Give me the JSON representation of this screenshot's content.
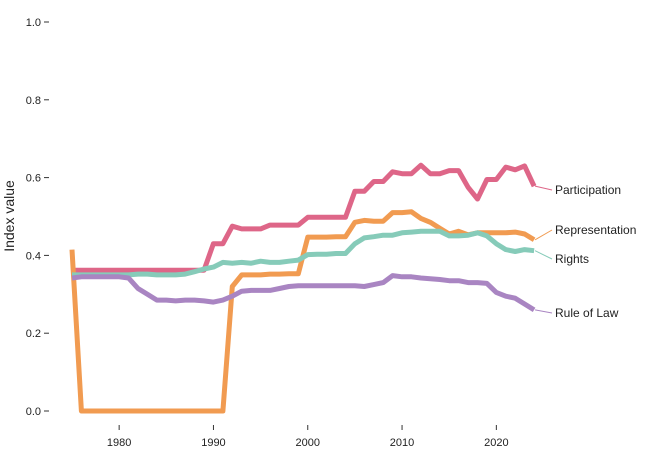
{
  "chart_data": {
    "type": "line",
    "title": "",
    "xlabel": "",
    "ylabel": "Index value",
    "xlim": [
      1975,
      2024
    ],
    "ylim": [
      0,
      1.0
    ],
    "x_ticks": [
      "1980",
      "1990",
      "2000",
      "2010",
      "2020"
    ],
    "y_ticks": [
      "0.0",
      "0.2",
      "0.4",
      "0.6",
      "0.8",
      "1.0"
    ],
    "grid": false,
    "legend": "direct labels at line ends",
    "x": [
      1975,
      1976,
      1977,
      1978,
      1979,
      1980,
      1981,
      1982,
      1983,
      1984,
      1985,
      1986,
      1987,
      1988,
      1989,
      1990,
      1991,
      1992,
      1993,
      1994,
      1995,
      1996,
      1997,
      1998,
      1999,
      2000,
      2001,
      2002,
      2003,
      2004,
      2005,
      2006,
      2007,
      2008,
      2009,
      2010,
      2011,
      2012,
      2013,
      2014,
      2015,
      2016,
      2017,
      2018,
      2019,
      2020,
      2021,
      2022,
      2023,
      2024
    ],
    "series": [
      {
        "name": "Participation",
        "color": "#de6688",
        "values": [
          0.362,
          0.362,
          0.362,
          0.362,
          0.362,
          0.362,
          0.362,
          0.362,
          0.362,
          0.362,
          0.362,
          0.362,
          0.362,
          0.362,
          0.362,
          0.43,
          0.43,
          0.475,
          0.468,
          0.468,
          0.468,
          0.478,
          0.478,
          0.478,
          0.478,
          0.498,
          0.498,
          0.498,
          0.498,
          0.498,
          0.565,
          0.565,
          0.59,
          0.59,
          0.615,
          0.61,
          0.61,
          0.632,
          0.61,
          0.61,
          0.618,
          0.618,
          0.575,
          0.545,
          0.595,
          0.595,
          0.627,
          0.62,
          0.63,
          0.578
        ]
      },
      {
        "name": "Representation",
        "color": "#f19b51",
        "values": [
          0.415,
          0.0,
          0.0,
          0.0,
          0.0,
          0.0,
          0.0,
          0.0,
          0.0,
          0.0,
          0.0,
          0.0,
          0.0,
          0.0,
          0.0,
          0.0,
          0.0,
          0.32,
          0.35,
          0.35,
          0.35,
          0.352,
          0.352,
          0.353,
          0.353,
          0.447,
          0.447,
          0.447,
          0.448,
          0.448,
          0.485,
          0.49,
          0.488,
          0.488,
          0.51,
          0.51,
          0.512,
          0.495,
          0.485,
          0.47,
          0.455,
          0.462,
          0.453,
          0.458,
          0.458,
          0.458,
          0.458,
          0.46,
          0.455,
          0.44
        ]
      },
      {
        "name": "Rights",
        "color": "#86cbb9",
        "values": [
          0.35,
          0.35,
          0.35,
          0.35,
          0.35,
          0.35,
          0.35,
          0.352,
          0.352,
          0.35,
          0.35,
          0.35,
          0.352,
          0.358,
          0.365,
          0.37,
          0.382,
          0.38,
          0.382,
          0.38,
          0.385,
          0.382,
          0.382,
          0.385,
          0.388,
          0.402,
          0.403,
          0.403,
          0.405,
          0.405,
          0.43,
          0.445,
          0.448,
          0.452,
          0.452,
          0.458,
          0.46,
          0.462,
          0.462,
          0.462,
          0.45,
          0.45,
          0.452,
          0.458,
          0.45,
          0.43,
          0.415,
          0.41,
          0.415,
          0.412
        ]
      },
      {
        "name": "Rule of Law",
        "color": "#a985c2",
        "values": [
          0.342,
          0.345,
          0.345,
          0.345,
          0.345,
          0.345,
          0.342,
          0.315,
          0.3,
          0.285,
          0.285,
          0.283,
          0.285,
          0.285,
          0.283,
          0.28,
          0.285,
          0.295,
          0.308,
          0.31,
          0.31,
          0.31,
          0.315,
          0.32,
          0.322,
          0.322,
          0.322,
          0.322,
          0.322,
          0.322,
          0.322,
          0.32,
          0.325,
          0.33,
          0.348,
          0.345,
          0.345,
          0.342,
          0.34,
          0.338,
          0.335,
          0.335,
          0.33,
          0.33,
          0.328,
          0.305,
          0.295,
          0.29,
          0.275,
          0.26
        ]
      }
    ]
  }
}
